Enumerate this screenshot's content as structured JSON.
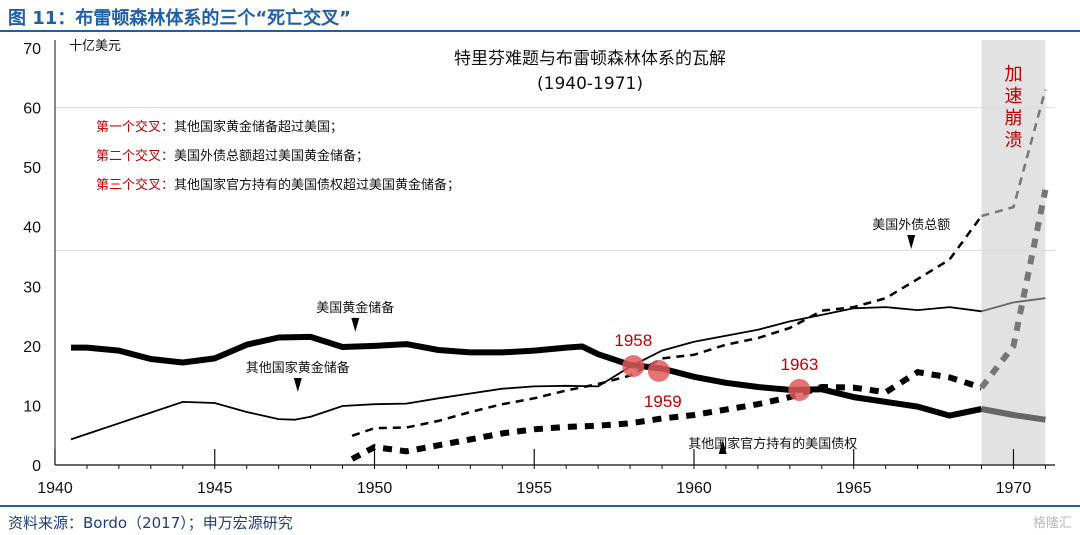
{
  "figure": {
    "title": "图 11：布雷顿森林体系的三个“死亡交叉”",
    "source": "资料来源：Bordo（2017）；申万宏源研究",
    "watermark": "格隆汇"
  },
  "colors": {
    "accent": "#1f5fa8",
    "marker": "#e05a5a",
    "shade": "#e2e2e2",
    "line": "#000000",
    "annotation_red": "#c00000"
  },
  "chart_data": {
    "type": "line",
    "title": "特里芬难题与布雷顿森林体系的瓦解",
    "subtitle": "(1940-1971)",
    "unit_label": "十亿美元",
    "xlim": [
      1940,
      1971.3
    ],
    "ylim": [
      0,
      70
    ],
    "x_ticks": [
      1940,
      1945,
      1950,
      1955,
      1960,
      1965,
      1970
    ],
    "y_ticks": [
      0,
      10,
      20,
      30,
      40,
      50,
      60,
      70
    ],
    "shaded_region": {
      "x": [
        1969,
        1971
      ],
      "label": "加速崩溃"
    },
    "series": [
      {
        "name": "美国黄金储备",
        "style": "thick-solid",
        "x": [
          1940.5,
          1941,
          1942,
          1943,
          1944,
          1945,
          1946,
          1947,
          1948,
          1949,
          1950,
          1951,
          1952,
          1953,
          1954,
          1955,
          1956,
          1956.5,
          1957,
          1958,
          1959,
          1960,
          1961,
          1962,
          1963,
          1964,
          1965,
          1966,
          1967,
          1968,
          1969,
          1970,
          1971
        ],
        "y": [
          19.7,
          19.7,
          19.2,
          17.8,
          17.2,
          17.9,
          20.2,
          21.4,
          21.5,
          19.8,
          20.0,
          20.3,
          19.3,
          18.9,
          18.9,
          19.2,
          19.7,
          19.9,
          18.6,
          16.8,
          16.2,
          14.8,
          13.8,
          13.1,
          12.6,
          12.7,
          11.4,
          10.6,
          9.8,
          8.3,
          9.4,
          8.4,
          7.6
        ]
      },
      {
        "name": "其他国家黄金储备",
        "style": "thin-solid",
        "x": [
          1940.5,
          1941,
          1942,
          1943,
          1944,
          1945,
          1946,
          1947,
          1947.5,
          1948,
          1949,
          1950,
          1951,
          1952,
          1953,
          1954,
          1955,
          1956,
          1957,
          1958,
          1959,
          1960,
          1961,
          1962,
          1963,
          1964,
          1965,
          1966,
          1967,
          1968,
          1969,
          1970,
          1971
        ],
        "y": [
          4.3,
          5.2,
          7.0,
          8.8,
          10.6,
          10.4,
          8.9,
          7.7,
          7.6,
          8.1,
          9.9,
          10.2,
          10.3,
          11.2,
          12.0,
          12.8,
          13.2,
          13.3,
          13.2,
          16.5,
          19.2,
          20.7,
          21.7,
          22.7,
          24.1,
          25.2,
          26.3,
          26.5,
          26.0,
          26.5,
          25.8,
          27.3,
          28.0
        ]
      },
      {
        "name": "美国外债总额",
        "style": "thin-dashed",
        "x": [
          1949.3,
          1950,
          1951,
          1952,
          1953,
          1954,
          1955,
          1956,
          1957,
          1958,
          1959,
          1960,
          1961,
          1962,
          1963,
          1964,
          1965,
          1966,
          1967,
          1968,
          1969,
          1970,
          1971
        ],
        "y": [
          4.9,
          6.2,
          6.3,
          7.4,
          8.9,
          10.2,
          11.2,
          12.5,
          13.6,
          15.0,
          17.9,
          18.5,
          20.2,
          21.3,
          23.0,
          25.9,
          26.5,
          28.0,
          31.2,
          34.5,
          41.8,
          43.3,
          63.0
        ]
      },
      {
        "name": "其他国家官方持有的美国债权",
        "style": "thick-dashed",
        "x": [
          1949.3,
          1950,
          1951,
          1952,
          1953,
          1954,
          1955,
          1956,
          1957,
          1958,
          1959,
          1960,
          1961,
          1962,
          1963,
          1964,
          1965,
          1966,
          1967,
          1968,
          1969,
          1970,
          1971
        ],
        "y": [
          1.0,
          3.0,
          2.3,
          3.3,
          4.3,
          5.3,
          6.0,
          6.4,
          6.6,
          7.0,
          7.8,
          8.4,
          9.3,
          10.2,
          11.4,
          13.1,
          13.0,
          12.2,
          15.6,
          14.7,
          13.0,
          20.0,
          46.2
        ]
      }
    ],
    "crossings": [
      {
        "x": 1958.1,
        "y": 16.6,
        "label": "1958"
      },
      {
        "x": 1958.9,
        "y": 15.8,
        "label": "1959"
      },
      {
        "x": 1963.3,
        "y": 12.6,
        "label": "1963"
      }
    ],
    "legend_notes": [
      {
        "label": "第一个交叉：",
        "text": "其他国家黄金储备超过美国；"
      },
      {
        "label": "第二个交叉：",
        "text": "美国外债总额超过美国黄金储备；"
      },
      {
        "label": "第三个交叉：",
        "text": "其他国家官方持有的美国债权超过美国黄金储备；"
      }
    ],
    "series_labels": [
      {
        "text": "美国黄金储备",
        "arrow": "down",
        "x": 1949.4,
        "y": 23.7
      },
      {
        "text": "其他国家黄金储备",
        "arrow": "down",
        "x": 1947.6,
        "y": 13.6
      },
      {
        "text": "美国外债总额",
        "arrow": "down",
        "x": 1966.8,
        "y": 37.6
      },
      {
        "text": "其他国家官方持有的美国债权",
        "arrow": "up",
        "x": 1960.9,
        "y": 0.5
      }
    ]
  }
}
